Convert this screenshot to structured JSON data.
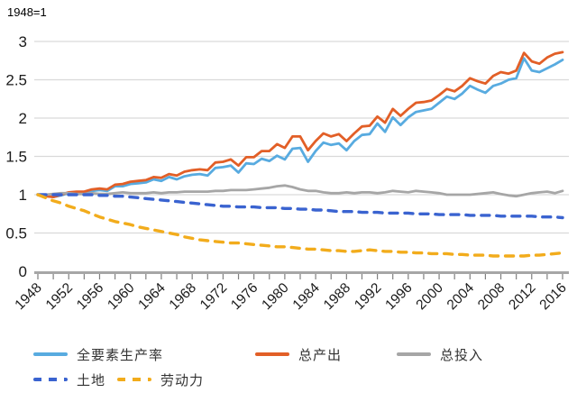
{
  "chart_data": {
    "type": "line",
    "title": "1948=1",
    "xlabel": "",
    "ylabel": "",
    "ylim": [
      0,
      3
    ],
    "y_ticks": [
      0,
      0.5,
      1,
      1.5,
      2,
      2.5,
      3
    ],
    "x_tick_label_step": 4,
    "x_minor_tick_step": 2,
    "grid": true,
    "legend_position": "bottom",
    "x": [
      1948,
      1949,
      1950,
      1951,
      1952,
      1953,
      1954,
      1955,
      1956,
      1957,
      1958,
      1959,
      1960,
      1961,
      1962,
      1963,
      1964,
      1965,
      1966,
      1967,
      1968,
      1969,
      1970,
      1971,
      1972,
      1973,
      1974,
      1975,
      1976,
      1977,
      1978,
      1979,
      1980,
      1981,
      1982,
      1983,
      1984,
      1985,
      1986,
      1987,
      1988,
      1989,
      1990,
      1991,
      1992,
      1993,
      1994,
      1995,
      1996,
      1997,
      1998,
      1999,
      2000,
      2001,
      2002,
      2003,
      2004,
      2005,
      2006,
      2007,
      2008,
      2009,
      2010,
      2011,
      2012,
      2013,
      2014,
      2015,
      2016
    ],
    "series": [
      {
        "name": "全要素生产率",
        "color": "#58ABE0",
        "style": "solid",
        "values": [
          1.0,
          0.99,
          0.97,
          0.99,
          1.02,
          1.03,
          1.03,
          1.05,
          1.06,
          1.05,
          1.11,
          1.11,
          1.14,
          1.15,
          1.16,
          1.2,
          1.18,
          1.23,
          1.2,
          1.24,
          1.26,
          1.27,
          1.25,
          1.35,
          1.36,
          1.38,
          1.29,
          1.41,
          1.4,
          1.47,
          1.44,
          1.51,
          1.46,
          1.6,
          1.61,
          1.43,
          1.57,
          1.68,
          1.65,
          1.67,
          1.58,
          1.7,
          1.78,
          1.79,
          1.93,
          1.82,
          2.01,
          1.91,
          2.01,
          2.08,
          2.1,
          2.12,
          2.2,
          2.28,
          2.25,
          2.32,
          2.42,
          2.37,
          2.33,
          2.42,
          2.45,
          2.5,
          2.52,
          2.78,
          2.62,
          2.6,
          2.65,
          2.7,
          2.76
        ]
      },
      {
        "name": "总产出",
        "color": "#E25F27",
        "style": "solid",
        "values": [
          1.0,
          0.98,
          0.97,
          1.0,
          1.03,
          1.04,
          1.04,
          1.07,
          1.08,
          1.07,
          1.13,
          1.14,
          1.17,
          1.18,
          1.19,
          1.23,
          1.22,
          1.27,
          1.25,
          1.3,
          1.32,
          1.33,
          1.32,
          1.42,
          1.43,
          1.46,
          1.38,
          1.49,
          1.49,
          1.57,
          1.57,
          1.66,
          1.61,
          1.76,
          1.76,
          1.58,
          1.7,
          1.8,
          1.76,
          1.79,
          1.7,
          1.8,
          1.89,
          1.9,
          2.02,
          1.94,
          2.12,
          2.03,
          2.12,
          2.2,
          2.21,
          2.23,
          2.3,
          2.38,
          2.35,
          2.42,
          2.52,
          2.48,
          2.45,
          2.55,
          2.6,
          2.58,
          2.62,
          2.85,
          2.74,
          2.71,
          2.79,
          2.84,
          2.86
        ]
      },
      {
        "name": "总投入",
        "color": "#A6A6A6",
        "style": "solid",
        "values": [
          1.0,
          1.0,
          1.01,
          1.02,
          1.02,
          1.01,
          1.01,
          1.02,
          1.01,
          1.01,
          1.02,
          1.03,
          1.02,
          1.02,
          1.02,
          1.03,
          1.02,
          1.03,
          1.03,
          1.04,
          1.04,
          1.04,
          1.04,
          1.05,
          1.05,
          1.06,
          1.06,
          1.06,
          1.07,
          1.08,
          1.09,
          1.11,
          1.12,
          1.1,
          1.07,
          1.05,
          1.05,
          1.03,
          1.02,
          1.02,
          1.03,
          1.02,
          1.03,
          1.03,
          1.02,
          1.03,
          1.05,
          1.04,
          1.03,
          1.05,
          1.04,
          1.03,
          1.02,
          1.0,
          1.0,
          1.0,
          1.0,
          1.01,
          1.02,
          1.03,
          1.01,
          0.99,
          0.98,
          1.0,
          1.02,
          1.03,
          1.04,
          1.02,
          1.05
        ]
      },
      {
        "name": "土地",
        "color": "#3A63D0",
        "style": "dashed",
        "values": [
          1.0,
          1.0,
          1.0,
          1.0,
          1.0,
          1.0,
          1.0,
          1.0,
          0.99,
          0.99,
          0.98,
          0.98,
          0.97,
          0.96,
          0.95,
          0.94,
          0.93,
          0.92,
          0.91,
          0.9,
          0.89,
          0.88,
          0.87,
          0.86,
          0.85,
          0.85,
          0.84,
          0.84,
          0.84,
          0.83,
          0.83,
          0.83,
          0.82,
          0.82,
          0.81,
          0.81,
          0.8,
          0.8,
          0.79,
          0.78,
          0.78,
          0.78,
          0.77,
          0.77,
          0.77,
          0.76,
          0.76,
          0.76,
          0.76,
          0.75,
          0.75,
          0.75,
          0.74,
          0.74,
          0.74,
          0.74,
          0.73,
          0.73,
          0.73,
          0.73,
          0.72,
          0.72,
          0.72,
          0.72,
          0.72,
          0.71,
          0.71,
          0.71,
          0.7
        ]
      },
      {
        "name": "劳动力",
        "color": "#F2AC1C",
        "style": "dashed",
        "values": [
          1.0,
          0.96,
          0.92,
          0.89,
          0.85,
          0.82,
          0.79,
          0.75,
          0.71,
          0.68,
          0.65,
          0.63,
          0.61,
          0.58,
          0.56,
          0.54,
          0.52,
          0.5,
          0.48,
          0.45,
          0.43,
          0.41,
          0.4,
          0.39,
          0.38,
          0.37,
          0.37,
          0.36,
          0.35,
          0.34,
          0.33,
          0.32,
          0.32,
          0.31,
          0.3,
          0.29,
          0.29,
          0.28,
          0.27,
          0.27,
          0.26,
          0.26,
          0.27,
          0.28,
          0.27,
          0.26,
          0.26,
          0.25,
          0.25,
          0.24,
          0.24,
          0.23,
          0.23,
          0.23,
          0.22,
          0.22,
          0.21,
          0.21,
          0.21,
          0.2,
          0.2,
          0.2,
          0.2,
          0.2,
          0.21,
          0.21,
          0.22,
          0.23,
          0.24
        ]
      }
    ]
  }
}
